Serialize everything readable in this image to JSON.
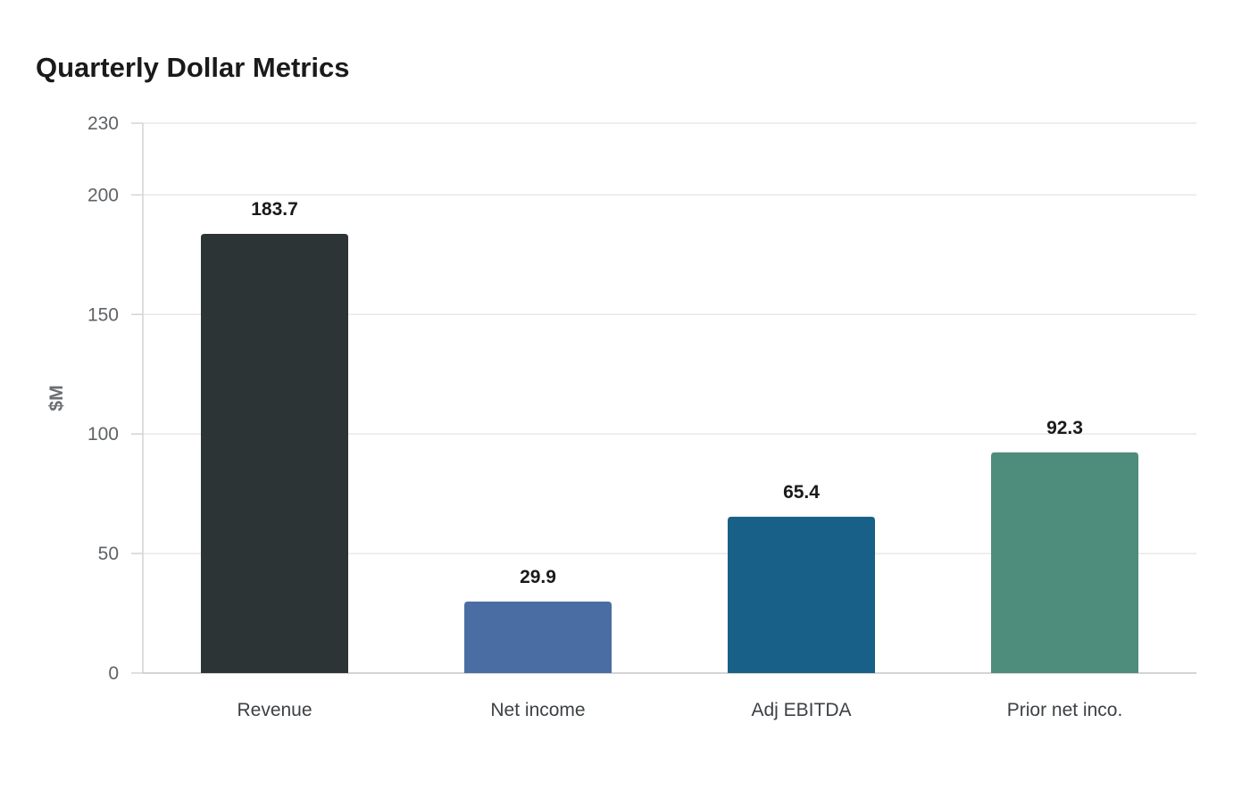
{
  "chart_data": {
    "type": "bar",
    "title": "Quarterly Dollar Metrics",
    "xlabel": "",
    "ylabel": "$M",
    "categories": [
      "Revenue",
      "Net income",
      "Adj EBITDA",
      "Prior net inco."
    ],
    "values": [
      183.7,
      29.9,
      65.4,
      92.3
    ],
    "value_labels": [
      "183.7",
      "29.9",
      "65.4",
      "92.3"
    ],
    "colors": [
      "#2d3436",
      "#4a6da3",
      "#186087",
      "#4e8d7c"
    ],
    "ylim": [
      0,
      230
    ],
    "yticks": [
      0,
      50,
      100,
      150,
      200,
      230
    ],
    "grid": true,
    "legend": "none"
  }
}
